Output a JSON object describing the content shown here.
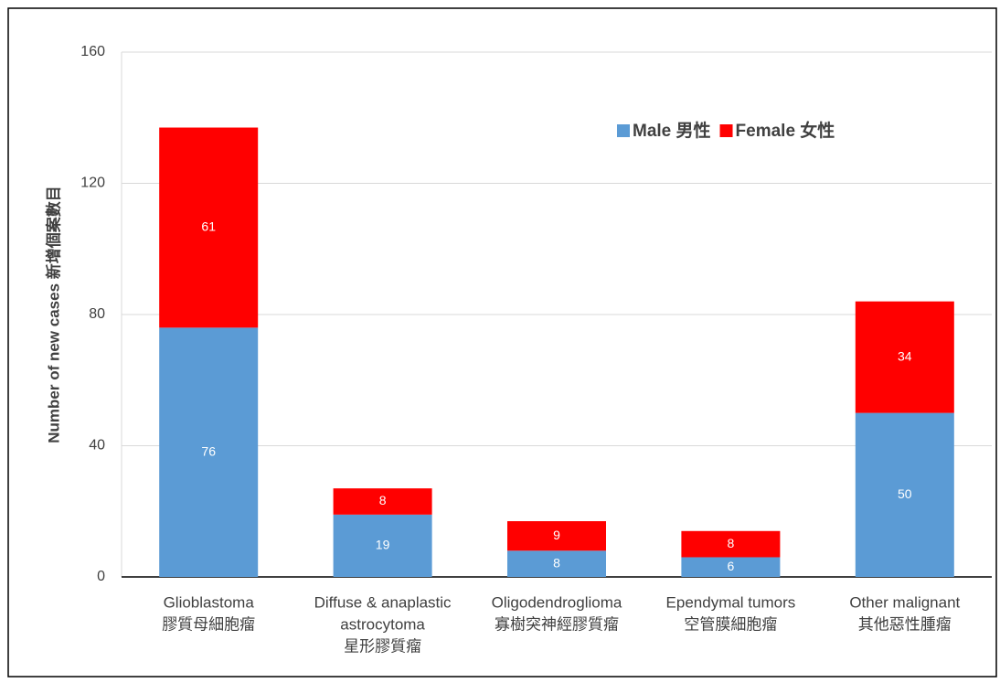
{
  "chart_data": {
    "type": "stacked_bar",
    "ylabel": "Number of new cases 新增個案數目",
    "categories": [
      [
        "Glioblastoma",
        "膠質母細胞瘤"
      ],
      [
        "Diffuse & anaplastic",
        "astrocytoma",
        "星形膠質瘤"
      ],
      [
        "Oligodendroglioma",
        "寡樹突神經膠質瘤"
      ],
      [
        "Ependymal tumors",
        "空管膜細胞瘤"
      ],
      [
        "Other malignant",
        "其他惡性腫瘤"
      ]
    ],
    "series": [
      {
        "name": "Male 男性",
        "color": "#5b9bd5",
        "values": [
          76,
          19,
          8,
          6,
          50
        ]
      },
      {
        "name": "Female 女性",
        "color": "#ff0000",
        "values": [
          61,
          8,
          9,
          8,
          34
        ]
      }
    ],
    "ylim": [
      0,
      160
    ],
    "yticks": [
      0,
      40,
      80,
      120,
      160
    ],
    "grid": true,
    "legend": "upper right"
  }
}
